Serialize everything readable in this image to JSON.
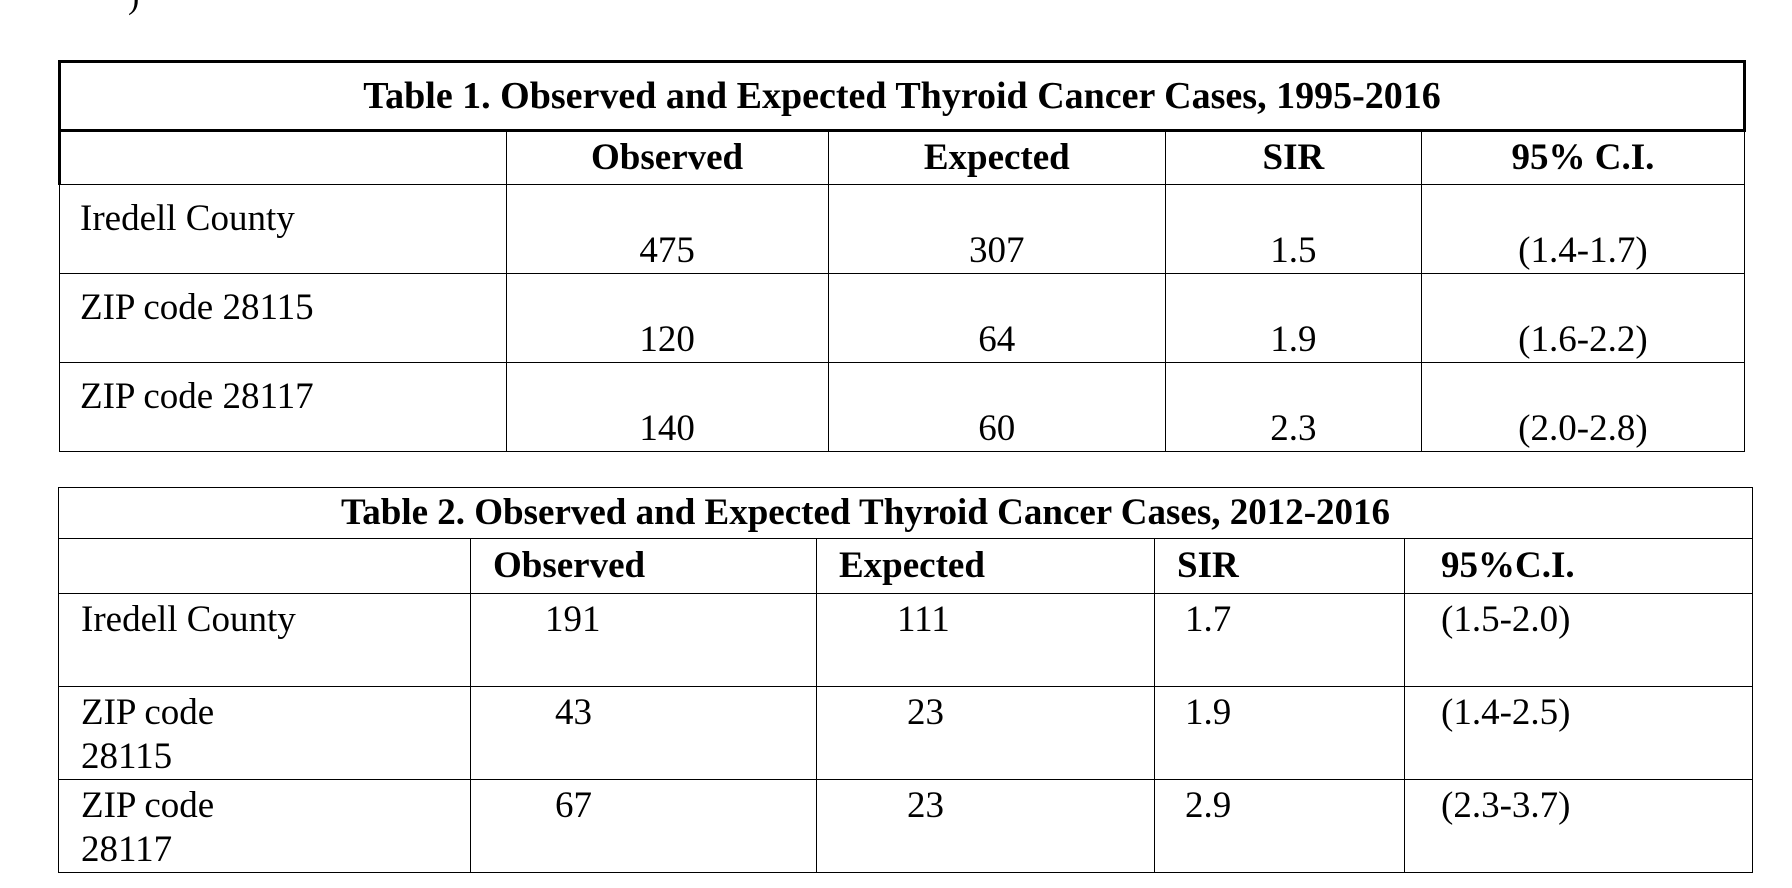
{
  "page": {
    "top_fragment": ")"
  },
  "table1": {
    "title": "Table 1. Observed and Expected Thyroid Cancer Cases, 1995-2016",
    "headers": [
      "",
      "Observed",
      "Expected",
      "SIR",
      "95% C.I."
    ],
    "rows": [
      {
        "label": "Iredell County",
        "observed": "475",
        "expected": "307",
        "sir": "1.5",
        "ci": "(1.4-1.7)"
      },
      {
        "label": "ZIP code 28115",
        "observed": "120",
        "expected": "64",
        "sir": "1.9",
        "ci": "(1.6-2.2)"
      },
      {
        "label": "ZIP code 28117",
        "observed": "140",
        "expected": "60",
        "sir": "2.3",
        "ci": "(2.0-2.8)"
      }
    ]
  },
  "table2": {
    "title": "Table 2. Observed and Expected Thyroid Cancer Cases, 2012-2016",
    "headers": [
      "",
      "Observed",
      "Expected",
      "SIR",
      "95%C.I."
    ],
    "rows": [
      {
        "label_line1": "Iredell County",
        "label_line2": "",
        "observed": "191",
        "expected": "111",
        "sir": "1.7",
        "ci": "(1.5-2.0)"
      },
      {
        "label_line1": "ZIP code",
        "label_line2": "28115",
        "observed": "43",
        "expected": "23",
        "sir": "1.9",
        "ci": "(1.4-2.5)"
      },
      {
        "label_line1": "ZIP code",
        "label_line2": "28117",
        "observed": "67",
        "expected": "23",
        "sir": "2.9",
        "ci": "(2.3-3.7)"
      }
    ]
  }
}
